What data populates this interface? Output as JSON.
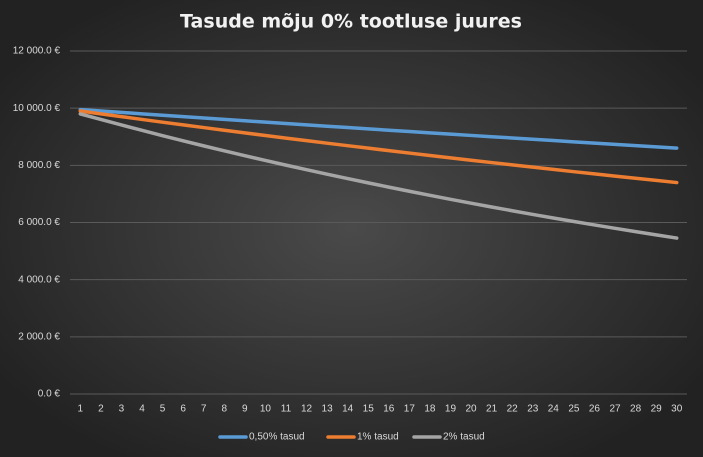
{
  "chart_data": {
    "type": "line",
    "title": "Tasude mõju 0% tootluse juures",
    "categories": [
      1,
      2,
      3,
      4,
      5,
      6,
      7,
      8,
      9,
      10,
      11,
      12,
      13,
      14,
      15,
      16,
      17,
      18,
      19,
      20,
      21,
      22,
      23,
      24,
      25,
      26,
      27,
      28,
      29,
      30
    ],
    "series": [
      {
        "name": "0,50% tasud",
        "color": "#5b9bd5",
        "values": [
          9950,
          9900,
          9851,
          9802,
          9753,
          9704,
          9655,
          9607,
          9559,
          9511,
          9464,
          9416,
          9369,
          9322,
          9276,
          9229,
          9183,
          9137,
          9092,
          9046,
          9001,
          8956,
          8911,
          8867,
          8822,
          8778,
          8734,
          8691,
          8647,
          8604
        ]
      },
      {
        "name": "1% tasud",
        "color": "#ed7d31",
        "values": [
          9900,
          9801,
          9703,
          9606,
          9510,
          9415,
          9321,
          9227,
          9135,
          9044,
          8953,
          8864,
          8775,
          8687,
          8601,
          8515,
          8429,
          8345,
          8262,
          8179,
          8097,
          8016,
          7936,
          7857,
          7778,
          7700,
          7623,
          7547,
          7472,
          7397
        ]
      },
      {
        "name": "2% tasud",
        "color": "#a5a5a5",
        "values": [
          9800,
          9604,
          9412,
          9224,
          9039,
          8858,
          8681,
          8508,
          8337,
          8171,
          8007,
          7847,
          7690,
          7536,
          7386,
          7238,
          7093,
          6951,
          6812,
          6676,
          6543,
          6412,
          6283,
          6158,
          6035,
          5914,
          5796,
          5680,
          5566,
          5455
        ]
      }
    ],
    "ylim": [
      0,
      12000
    ],
    "yticks": [
      {
        "value": 0,
        "label": "0.0 €"
      },
      {
        "value": 2000,
        "label": "2 000.0 €"
      },
      {
        "value": 4000,
        "label": "4 000.0 €"
      },
      {
        "value": 6000,
        "label": "6 000.0 €"
      },
      {
        "value": 8000,
        "label": "8 000.0 €"
      },
      {
        "value": 10000,
        "label": "10 000.0 €"
      },
      {
        "value": 12000,
        "label": "12 000.0 €"
      }
    ],
    "grid": true
  }
}
